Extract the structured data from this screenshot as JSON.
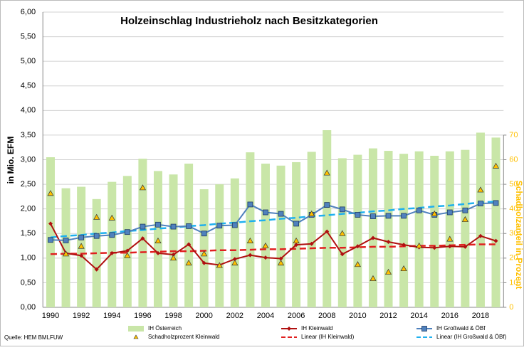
{
  "chart_data": {
    "type": "bar",
    "title": "Holzeinschlag Industrieholz nach Besitzkategorien",
    "y_label": "in Mio. EFM",
    "y2_label": "Schadholzanteil in Prozent",
    "source": "Quelle: HEM BMLFUW",
    "categories": [
      1990,
      null,
      1992,
      null,
      1994,
      null,
      1996,
      null,
      1998,
      null,
      2000,
      null,
      2002,
      null,
      2004,
      null,
      2006,
      null,
      2008,
      null,
      2010,
      null,
      2012,
      null,
      2014,
      null,
      2016,
      null,
      2018,
      null
    ],
    "ylim": [
      0,
      6
    ],
    "yticks": [
      {
        "value": 0,
        "label": "0,00"
      },
      {
        "value": 0.5,
        "label": "0,50"
      },
      {
        "value": 1,
        "label": "1,00"
      },
      {
        "value": 1.5,
        "label": "1,50"
      },
      {
        "value": 2,
        "label": "2,00"
      },
      {
        "value": 2.5,
        "label": "2,50"
      },
      {
        "value": 3,
        "label": "3,00"
      },
      {
        "value": 3.5,
        "label": "3,50"
      },
      {
        "value": 4,
        "label": "4,00"
      },
      {
        "value": 4.5,
        "label": "4,50"
      },
      {
        "value": 5,
        "label": "5,00"
      },
      {
        "value": 5.5,
        "label": "5,50"
      },
      {
        "value": 6,
        "label": "6,00"
      }
    ],
    "y2lim": [
      0,
      120
    ],
    "y2ticks": [
      0,
      10,
      20,
      30,
      40,
      50,
      60,
      70
    ],
    "grid": true,
    "series": [
      {
        "name": "IH Österreich",
        "type": "bar",
        "color": "#c9e6a8",
        "values": [
          3.05,
          2.42,
          2.45,
          2.2,
          2.55,
          2.67,
          3.02,
          2.77,
          2.7,
          2.92,
          2.4,
          2.5,
          2.62,
          3.15,
          2.92,
          2.88,
          2.95,
          3.16,
          3.6,
          3.03,
          3.1,
          3.23,
          3.18,
          3.12,
          3.17,
          3.08,
          3.17,
          3.2,
          3.55,
          3.45
        ]
      },
      {
        "name": "IH Kleinwald",
        "type": "line",
        "marker": "diamond",
        "color": "#b01010",
        "values": [
          1.7,
          1.1,
          1.05,
          0.77,
          1.1,
          1.15,
          1.4,
          1.1,
          1.07,
          1.28,
          0.9,
          0.86,
          0.98,
          1.06,
          1.01,
          0.99,
          1.27,
          1.29,
          1.54,
          1.08,
          1.24,
          1.41,
          1.33,
          1.27,
          1.22,
          1.21,
          1.24,
          1.23,
          1.45,
          1.35
        ]
      },
      {
        "name": "IH Großwald & ÖBf",
        "type": "line",
        "marker": "square",
        "color": "#4f81bd",
        "values": [
          1.37,
          1.36,
          1.42,
          1.45,
          1.47,
          1.53,
          1.64,
          1.68,
          1.64,
          1.65,
          1.5,
          1.66,
          1.67,
          2.09,
          1.93,
          1.9,
          1.7,
          1.88,
          2.08,
          1.99,
          1.88,
          1.85,
          1.86,
          1.86,
          1.97,
          1.88,
          1.93,
          1.97,
          2.11,
          2.12
        ]
      },
      {
        "name": "Schadholzprozent Kleinwald",
        "type": "scatter",
        "axis": "y2",
        "color": "#ffc000",
        "values": [
          46.3,
          21.7,
          24.8,
          36.6,
          36.3,
          21,
          48.6,
          27,
          20,
          18,
          21.7,
          17,
          18,
          27,
          25,
          18,
          27,
          38,
          54.6,
          30,
          17.4,
          11.7,
          14.3,
          15.7,
          25,
          38,
          27.7,
          35.7,
          47.7,
          57.4
        ]
      },
      {
        "name": "Linear (IH Kleinwald)",
        "type": "trend",
        "color": "#e02020",
        "values": [
          1.08,
          1.09,
          1.09,
          1.1,
          1.11,
          1.11,
          1.12,
          1.13,
          1.14,
          1.14,
          1.15,
          1.16,
          1.16,
          1.17,
          1.18,
          1.18,
          1.19,
          1.2,
          1.21,
          1.21,
          1.22,
          1.23,
          1.23,
          1.24,
          1.25,
          1.25,
          1.26,
          1.27,
          1.28,
          1.28
        ]
      },
      {
        "name": "Linear (IH Großwald & ÖBf)",
        "type": "trend",
        "color": "#1fb0ee",
        "values": [
          1.42,
          1.45,
          1.47,
          1.5,
          1.52,
          1.55,
          1.57,
          1.6,
          1.62,
          1.65,
          1.67,
          1.7,
          1.72,
          1.75,
          1.77,
          1.8,
          1.82,
          1.85,
          1.87,
          1.9,
          1.92,
          1.95,
          1.97,
          2.0,
          2.02,
          2.05,
          2.07,
          2.1,
          2.13,
          2.15
        ]
      }
    ]
  }
}
